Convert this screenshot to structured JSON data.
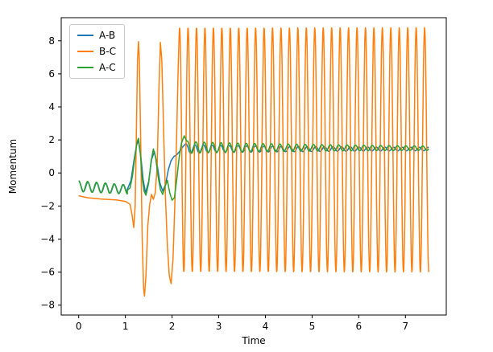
{
  "chart_data": {
    "type": "line",
    "title": "",
    "xlabel": "Time",
    "ylabel": "Momentum",
    "xlim": [
      -0.375,
      7.875
    ],
    "ylim": [
      -8.6,
      9.4
    ],
    "grid": false,
    "legend_position": "upper-left",
    "legend_labels": [
      "A-B",
      "B-C",
      "A-C"
    ],
    "xticks": [
      {
        "v": 0,
        "label": "0"
      },
      {
        "v": 1,
        "label": "1"
      },
      {
        "v": 2,
        "label": "2"
      },
      {
        "v": 3,
        "label": "3"
      },
      {
        "v": 4,
        "label": "4"
      },
      {
        "v": 5,
        "label": "5"
      },
      {
        "v": 6,
        "label": "6"
      },
      {
        "v": 7,
        "label": "7"
      }
    ],
    "yticks": [
      {
        "v": -8,
        "label": "−8"
      },
      {
        "v": -6,
        "label": "−6"
      },
      {
        "v": -4,
        "label": "−4"
      },
      {
        "v": -2,
        "label": "−2"
      },
      {
        "v": 0,
        "label": "0"
      },
      {
        "v": 2,
        "label": "2"
      },
      {
        "v": 4,
        "label": "4"
      },
      {
        "v": 6,
        "label": "6"
      },
      {
        "v": 8,
        "label": "8"
      }
    ],
    "series": [
      {
        "name": "A-B",
        "color": "#1f77b4",
        "segments": [
          {
            "type": "osc",
            "t0": 0,
            "t1": 1.04,
            "period": 0.19,
            "phase": 1.35,
            "offset": [
              -0.82,
              -1.0
            ],
            "amp": [
              0.3,
              0.27
            ]
          },
          {
            "type": "pts",
            "pts": [
              [
                1.04,
                -1.0
              ],
              [
                1.12,
                -0.45
              ],
              [
                1.18,
                0.7
              ],
              [
                1.24,
                1.7
              ],
              [
                1.28,
                1.95
              ],
              [
                1.33,
                1.0
              ],
              [
                1.38,
                -0.4
              ],
              [
                1.43,
                -1.2
              ],
              [
                1.5,
                -0.5
              ],
              [
                1.56,
                0.8
              ],
              [
                1.62,
                1.3
              ],
              [
                1.68,
                0.5
              ],
              [
                1.74,
                -0.6
              ],
              [
                1.8,
                -1.1
              ],
              [
                1.86,
                -0.7
              ],
              [
                1.92,
                0.2
              ],
              [
                1.98,
                0.75
              ],
              [
                2.04,
                1.0
              ],
              [
                2.1,
                1.1
              ],
              [
                2.16,
                1.3
              ],
              [
                2.22,
                1.55
              ],
              [
                2.3,
                1.8
              ]
            ]
          },
          {
            "type": "osc",
            "t0": 2.3,
            "t1": 7.5,
            "period": 0.185,
            "phase": 1.4,
            "offset": [
              1.45,
              1.45
            ],
            "amp": [
              0.3,
              0.1
            ],
            "decay": 0.45
          }
        ]
      },
      {
        "name": "B-C",
        "color": "#ff7f0e",
        "segments": [
          {
            "type": "pts",
            "pts": [
              [
                0,
                -1.38
              ],
              [
                0.2,
                -1.5
              ],
              [
                0.5,
                -1.58
              ],
              [
                0.8,
                -1.63
              ],
              [
                1.0,
                -1.72
              ],
              [
                1.1,
                -1.9
              ],
              [
                1.14,
                -2.5
              ],
              [
                1.18,
                -3.3
              ],
              [
                1.21,
                -2.0
              ],
              [
                1.23,
                1.5
              ],
              [
                1.26,
                6.8
              ],
              [
                1.28,
                7.95
              ],
              [
                1.3,
                6.8
              ],
              [
                1.33,
                1.5
              ],
              [
                1.36,
                -4.0
              ],
              [
                1.39,
                -7.0
              ],
              [
                1.41,
                -7.45
              ],
              [
                1.44,
                -6.2
              ],
              [
                1.48,
                -3.2
              ],
              [
                1.52,
                -1.9
              ],
              [
                1.56,
                -1.3
              ],
              [
                1.6,
                -1.6
              ],
              [
                1.64,
                -1.2
              ],
              [
                1.68,
                0.4
              ],
              [
                1.72,
                5.2
              ],
              [
                1.75,
                7.9
              ],
              [
                1.78,
                6.8
              ],
              [
                1.82,
                2.4
              ],
              [
                1.86,
                -1.6
              ],
              [
                1.9,
                -4.4
              ],
              [
                1.94,
                -6.2
              ],
              [
                1.98,
                -6.7
              ],
              [
                2.02,
                -5.2
              ],
              [
                2.06,
                -1.8
              ],
              [
                2.1,
                2.5
              ],
              [
                2.13,
                6.2
              ]
            ]
          },
          {
            "type": "osc",
            "t0": 2.145,
            "t1": 7.5,
            "period": 0.181,
            "phase": 1.0,
            "offset": [
              1.4,
              1.4
            ],
            "amp": [
              7.4,
              7.4
            ]
          }
        ]
      },
      {
        "name": "A-C",
        "color": "#2ca02c",
        "segments": [
          {
            "type": "osc",
            "t0": 0,
            "t1": 1.04,
            "period": 0.19,
            "phase": 1.57,
            "offset": [
              -0.8,
              -1.0
            ],
            "amp": [
              0.33,
              0.28
            ]
          },
          {
            "type": "pts",
            "pts": [
              [
                1.04,
                -1.05
              ],
              [
                1.1,
                -0.9
              ],
              [
                1.15,
                -0.2
              ],
              [
                1.2,
                0.9
              ],
              [
                1.25,
                1.9
              ],
              [
                1.28,
                2.1
              ],
              [
                1.32,
                1.2
              ],
              [
                1.36,
                -0.3
              ],
              [
                1.4,
                -1.1
              ],
              [
                1.44,
                -1.35
              ],
              [
                1.5,
                -0.6
              ],
              [
                1.55,
                0.7
              ],
              [
                1.6,
                1.45
              ],
              [
                1.65,
                0.9
              ],
              [
                1.7,
                -0.2
              ],
              [
                1.75,
                -1.0
              ],
              [
                1.8,
                -1.3
              ],
              [
                1.85,
                -0.8
              ],
              [
                1.9,
                -0.45
              ],
              [
                1.95,
                -1.2
              ],
              [
                2.0,
                -1.65
              ],
              [
                2.05,
                -1.5
              ],
              [
                2.1,
                -0.4
              ],
              [
                2.15,
                0.9
              ],
              [
                2.2,
                1.8
              ],
              [
                2.26,
                2.25
              ],
              [
                2.3,
                2.0
              ]
            ]
          },
          {
            "type": "osc",
            "t0": 2.32,
            "t1": 7.5,
            "period": 0.18,
            "phase": 1.2,
            "offset": [
              1.55,
              1.5
            ],
            "amp": [
              0.4,
              0.13
            ],
            "decay": 0.45
          }
        ]
      }
    ]
  }
}
